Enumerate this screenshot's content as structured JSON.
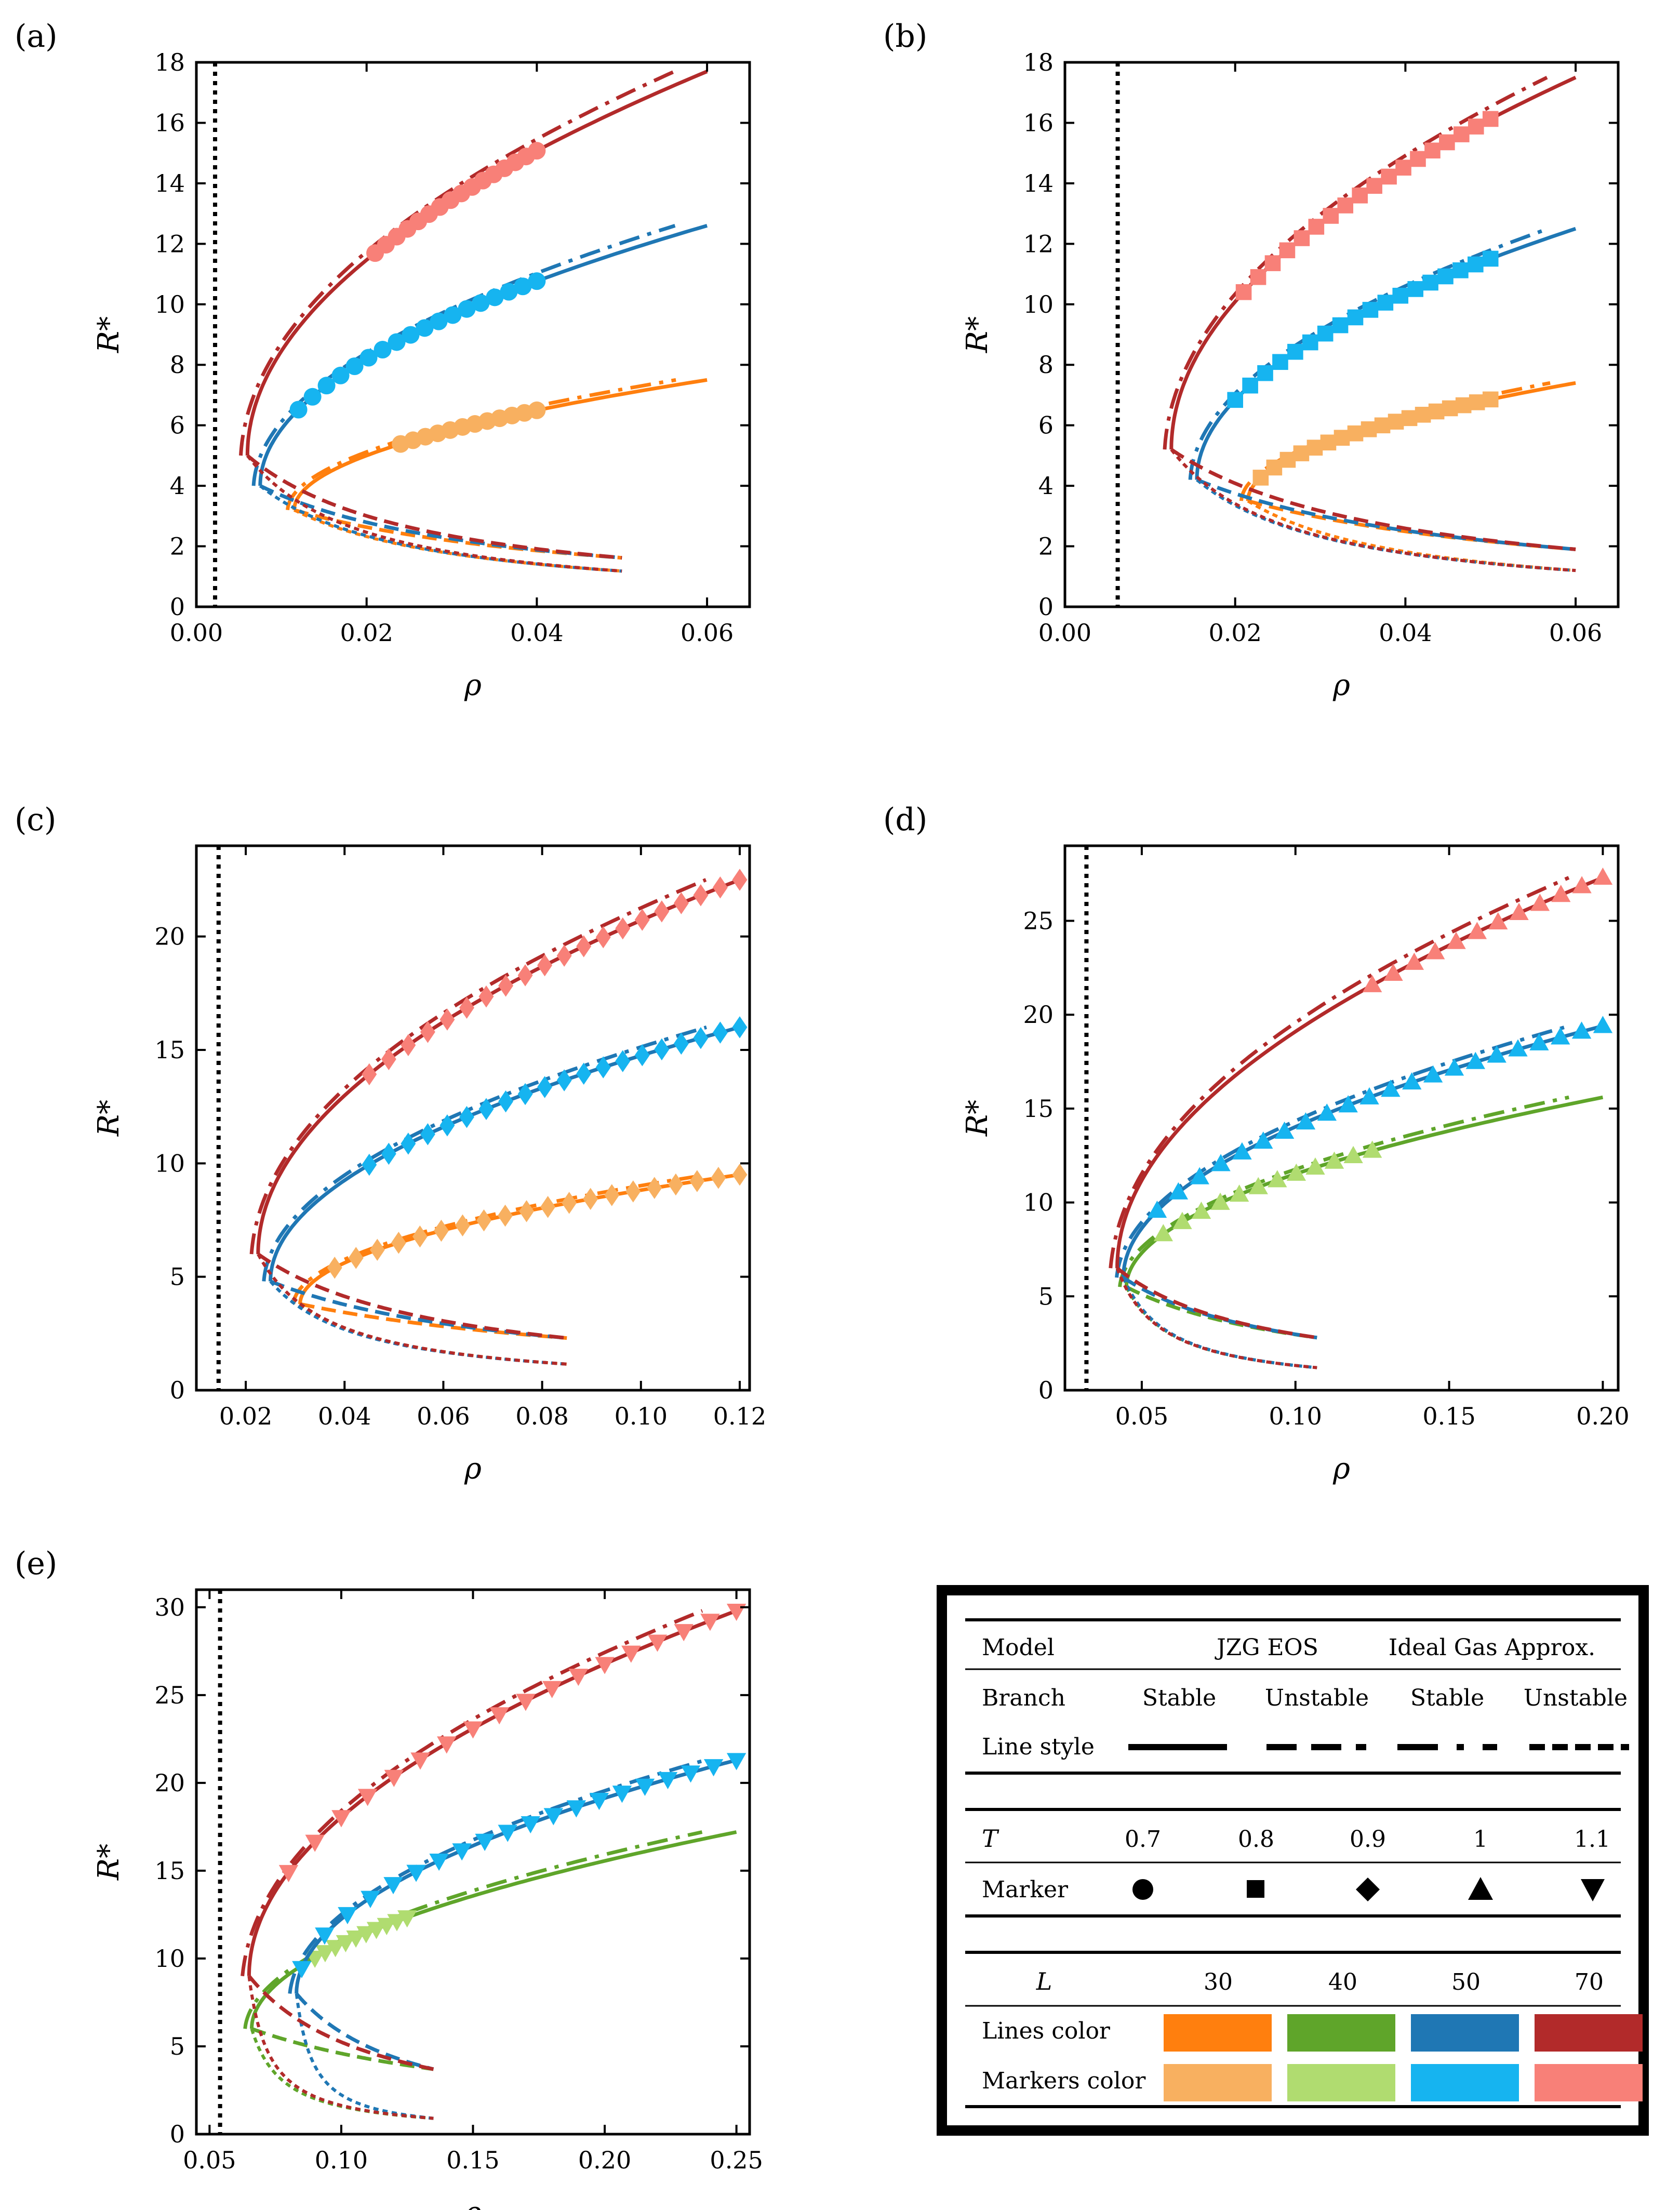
{
  "chart_data": [
    {
      "type": "line",
      "panel_label": "(a)",
      "xlabel": "ρ",
      "ylabel": "R*",
      "xlim": [
        0.0,
        0.065
      ],
      "ylim": [
        0,
        18
      ],
      "xticks": [
        0.0,
        0.02,
        0.04,
        0.06
      ],
      "xtick_labels": [
        "0.00",
        "0.02",
        "0.04",
        "0.06"
      ],
      "yticks": [
        0,
        2,
        4,
        6,
        8,
        10,
        12,
        14,
        16,
        18
      ],
      "ytick_labels": [
        "0",
        "2",
        "4",
        "6",
        "8",
        "10",
        "12",
        "14",
        "16",
        "18"
      ],
      "marker": "circle",
      "spinodal_x": 0.0022,
      "series": [
        {
          "L": "30",
          "turn_rho": 0.0115,
          "turn_R": 3.2,
          "x_end": 0.06,
          "y_end": 7.5,
          "x_unst_end": 0.05,
          "y_unst_end": 1.62,
          "y_unst_ig_end": 1.18,
          "marker_x": [
            0.024,
            0.04
          ],
          "n_markers": 12
        },
        {
          "L": "50",
          "turn_rho": 0.0075,
          "turn_R": 4.0,
          "x_end": 0.06,
          "y_end": 12.6,
          "x_unst_end": 0.05,
          "y_unst_end": 1.62,
          "y_unst_ig_end": 1.18,
          "marker_x": [
            0.012,
            0.04
          ],
          "n_markers": 18
        },
        {
          "L": "70",
          "turn_rho": 0.006,
          "turn_R": 5.0,
          "x_end": 0.06,
          "y_end": 17.7,
          "x_unst_end": 0.05,
          "y_unst_end": 1.62,
          "y_unst_ig_end": 1.18,
          "marker_x": [
            0.021,
            0.04
          ],
          "n_markers": 16
        }
      ]
    },
    {
      "type": "line",
      "panel_label": "(b)",
      "xlabel": "ρ",
      "ylabel": "R*",
      "xlim": [
        0.0,
        0.065
      ],
      "ylim": [
        0,
        18
      ],
      "xticks": [
        0.0,
        0.02,
        0.04,
        0.06
      ],
      "xtick_labels": [
        "0.00",
        "0.02",
        "0.04",
        "0.06"
      ],
      "yticks": [
        0,
        2,
        4,
        6,
        8,
        10,
        12,
        14,
        16,
        18
      ],
      "ytick_labels": [
        "0",
        "2",
        "4",
        "6",
        "8",
        "10",
        "12",
        "14",
        "16",
        "18"
      ],
      "marker": "square",
      "spinodal_x": 0.0062,
      "series": [
        {
          "L": "30",
          "turn_rho": 0.0215,
          "turn_R": 3.5,
          "x_end": 0.06,
          "y_end": 7.4,
          "x_unst_end": 0.06,
          "y_unst_end": 1.9,
          "y_unst_ig_end": 1.2,
          "marker_x": [
            0.023,
            0.05
          ],
          "n_markers": 18
        },
        {
          "L": "50",
          "turn_rho": 0.0155,
          "turn_R": 4.2,
          "x_end": 0.06,
          "y_end": 12.5,
          "x_unst_end": 0.06,
          "y_unst_end": 1.9,
          "y_unst_ig_end": 1.2,
          "marker_x": [
            0.02,
            0.05
          ],
          "n_markers": 18
        },
        {
          "L": "70",
          "turn_rho": 0.0125,
          "turn_R": 5.2,
          "x_end": 0.06,
          "y_end": 17.5,
          "x_unst_end": 0.06,
          "y_unst_end": 1.9,
          "y_unst_ig_end": 1.2,
          "marker_x": [
            0.021,
            0.05
          ],
          "n_markers": 18
        }
      ]
    },
    {
      "type": "line",
      "panel_label": "(c)",
      "xlabel": "ρ",
      "ylabel": "R*",
      "xlim": [
        0.01,
        0.122
      ],
      "ylim": [
        0,
        24
      ],
      "xticks": [
        0.02,
        0.04,
        0.06,
        0.08,
        0.1,
        0.12
      ],
      "xtick_labels": [
        "0.02",
        "0.04",
        "0.06",
        "0.08",
        "0.10",
        "0.12"
      ],
      "yticks": [
        0,
        5,
        10,
        15,
        20
      ],
      "ytick_labels": [
        "0",
        "5",
        "10",
        "15",
        "20"
      ],
      "marker": "diamond",
      "spinodal_x": 0.0145,
      "series": [
        {
          "L": "30",
          "turn_rho": 0.031,
          "turn_R": 3.8,
          "x_end": 0.12,
          "y_end": 9.5,
          "x_unst_end": 0.085,
          "y_unst_end": 2.3,
          "y_unst_ig_end": 1.15,
          "marker_x": [
            0.038,
            0.12
          ],
          "n_markers": 20
        },
        {
          "L": "50",
          "turn_rho": 0.025,
          "turn_R": 4.8,
          "x_end": 0.12,
          "y_end": 16.0,
          "x_unst_end": 0.085,
          "y_unst_end": 2.3,
          "y_unst_ig_end": 1.15,
          "marker_x": [
            0.045,
            0.12
          ],
          "n_markers": 20
        },
        {
          "L": "70",
          "turn_rho": 0.0225,
          "turn_R": 6.0,
          "x_end": 0.12,
          "y_end": 22.5,
          "x_unst_end": 0.085,
          "y_unst_end": 2.3,
          "y_unst_ig_end": 1.15,
          "marker_x": [
            0.045,
            0.12
          ],
          "n_markers": 20
        }
      ]
    },
    {
      "type": "line",
      "panel_label": "(d)",
      "xlabel": "ρ",
      "ylabel": "R*",
      "xlim": [
        0.025,
        0.205
      ],
      "ylim": [
        0,
        29
      ],
      "xticks": [
        0.05,
        0.1,
        0.15,
        0.2
      ],
      "xtick_labels": [
        "0.05",
        "0.10",
        "0.15",
        "0.20"
      ],
      "yticks": [
        0,
        5,
        10,
        15,
        20,
        25
      ],
      "ytick_labels": [
        "0",
        "5",
        "10",
        "15",
        "20",
        "25"
      ],
      "marker": "triangle-up",
      "spinodal_x": 0.032,
      "series": [
        {
          "L": "40",
          "turn_rho": 0.045,
          "turn_R": 5.5,
          "x_end": 0.2,
          "y_end": 15.6,
          "x_unst_end": 0.107,
          "y_unst_end": 2.8,
          "y_unst_ig_end": 1.2,
          "marker_x": [
            0.057,
            0.125
          ],
          "n_markers": 12
        },
        {
          "L": "50",
          "turn_rho": 0.044,
          "turn_R": 6.0,
          "x_end": 0.2,
          "y_end": 19.4,
          "x_unst_end": 0.107,
          "y_unst_end": 2.8,
          "y_unst_ig_end": 1.2,
          "marker_x": [
            0.055,
            0.2
          ],
          "n_markers": 22
        },
        {
          "L": "70",
          "turn_rho": 0.042,
          "turn_R": 6.5,
          "x_end": 0.2,
          "y_end": 27.3,
          "x_unst_end": 0.107,
          "y_unst_end": 2.8,
          "y_unst_ig_end": 1.2,
          "marker_x": [
            0.125,
            0.2
          ],
          "n_markers": 12
        }
      ]
    },
    {
      "type": "line",
      "panel_label": "(e)",
      "xlabel": "ρ",
      "ylabel": "R*",
      "xlim": [
        0.045,
        0.255
      ],
      "ylim": [
        0,
        31
      ],
      "xticks": [
        0.05,
        0.1,
        0.15,
        0.2,
        0.25
      ],
      "xtick_labels": [
        "0.05",
        "0.10",
        "0.15",
        "0.20",
        "0.25"
      ],
      "yticks": [
        0,
        5,
        10,
        15,
        20,
        25,
        30
      ],
      "ytick_labels": [
        "0",
        "5",
        "10",
        "15",
        "20",
        "25",
        "30"
      ],
      "marker": "triangle-down",
      "spinodal_x": 0.054,
      "series": [
        {
          "L": "40",
          "turn_rho": 0.066,
          "turn_R": 6.0,
          "x_end": 0.25,
          "y_end": 17.2,
          "x_unst_end": 0.135,
          "y_unst_end": 3.7,
          "y_unst_ig_end": 0.9,
          "marker_x": [
            0.09,
            0.125
          ],
          "n_markers": 10
        },
        {
          "L": "50",
          "turn_rho": 0.083,
          "turn_R": 8.0,
          "x_end": 0.25,
          "y_end": 21.3,
          "x_unst_end": 0.135,
          "y_unst_end": 3.7,
          "y_unst_ig_end": 0.9,
          "marker_x": [
            0.085,
            0.25
          ],
          "n_markers": 20
        },
        {
          "L": "70",
          "turn_rho": 0.065,
          "turn_R": 9.0,
          "x_end": 0.25,
          "y_end": 29.8,
          "x_unst_end": 0.135,
          "y_unst_end": 3.7,
          "y_unst_ig_end": 0.9,
          "marker_x": [
            0.08,
            0.25
          ],
          "n_markers": 18
        }
      ]
    }
  ],
  "legend": {
    "model_label": "Model",
    "model_jzg": "JZG EOS",
    "model_ideal": "Ideal Gas Approx.",
    "branch_label": "Branch",
    "branches": [
      "Stable",
      "Unstable",
      "Stable",
      "Unstable"
    ],
    "linestyle_label": "Line style",
    "T_label": "T",
    "T_values": [
      "0.7",
      "0.8",
      "0.9",
      "1",
      "1.1"
    ],
    "marker_label": "Marker",
    "L_label": "L",
    "L_values": [
      "30",
      "40",
      "50",
      "70"
    ],
    "lines_color_label": "Lines color",
    "markers_color_label": "Markers color"
  },
  "colors": {
    "lines": {
      "30": "#ff7f0e",
      "40": "#5fa52a",
      "50": "#1f77b4",
      "70": "#b22a2a"
    },
    "markers": {
      "30": "#f8b060",
      "40": "#b0dc70",
      "50": "#16b4f0",
      "70": "#f88078"
    }
  }
}
